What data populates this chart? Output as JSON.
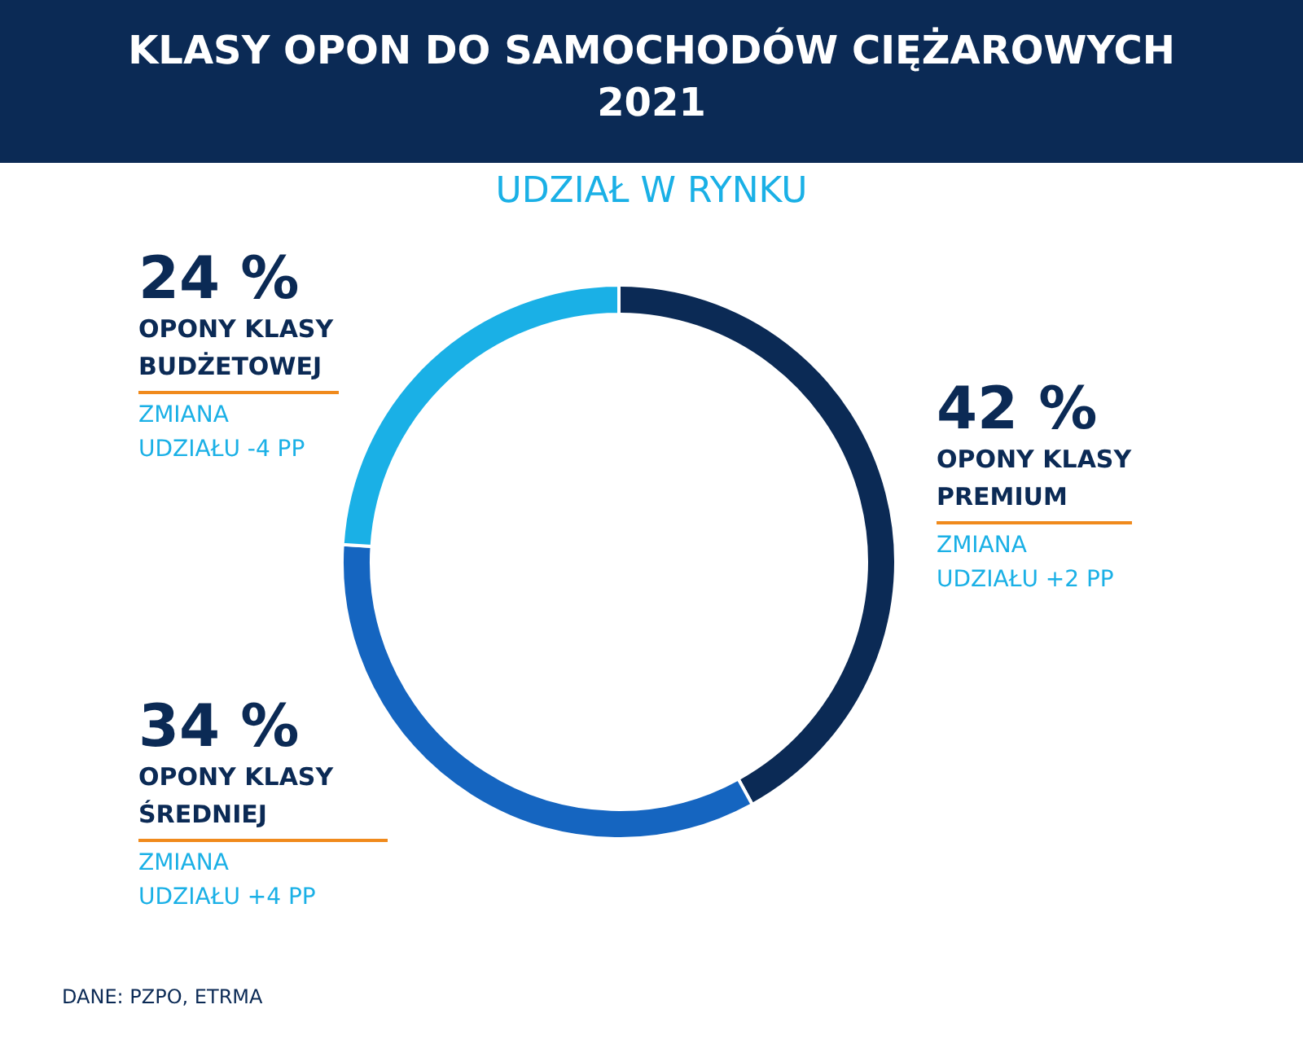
{
  "chart_data": {
    "type": "donut",
    "title": "KLASY OPON DO SAMOCHODÓW CIĘŻAROWYCH\n2021",
    "subtitle": "UDZIAŁ W RYNKU",
    "categories": [
      "OPONY KLASY PREMIUM",
      "OPONY KLASY ŚREDNIEJ",
      "OPONY KLASY BUDŻETOWEJ"
    ],
    "values": [
      42,
      34,
      24
    ],
    "colors": [
      "#0b2a55",
      "#1565c0",
      "#1ab0e6"
    ],
    "value_labels": [
      "42 %",
      "34 %",
      "24 %"
    ],
    "annotations": [
      "ZMIANA UDZIAŁU +2 PP",
      "ZMIANA UDZIAŁU +4 PP",
      "ZMIANA UDZIAŁU -4 PP",
      "DANE: PZPO, ETRMA"
    ]
  }
}
